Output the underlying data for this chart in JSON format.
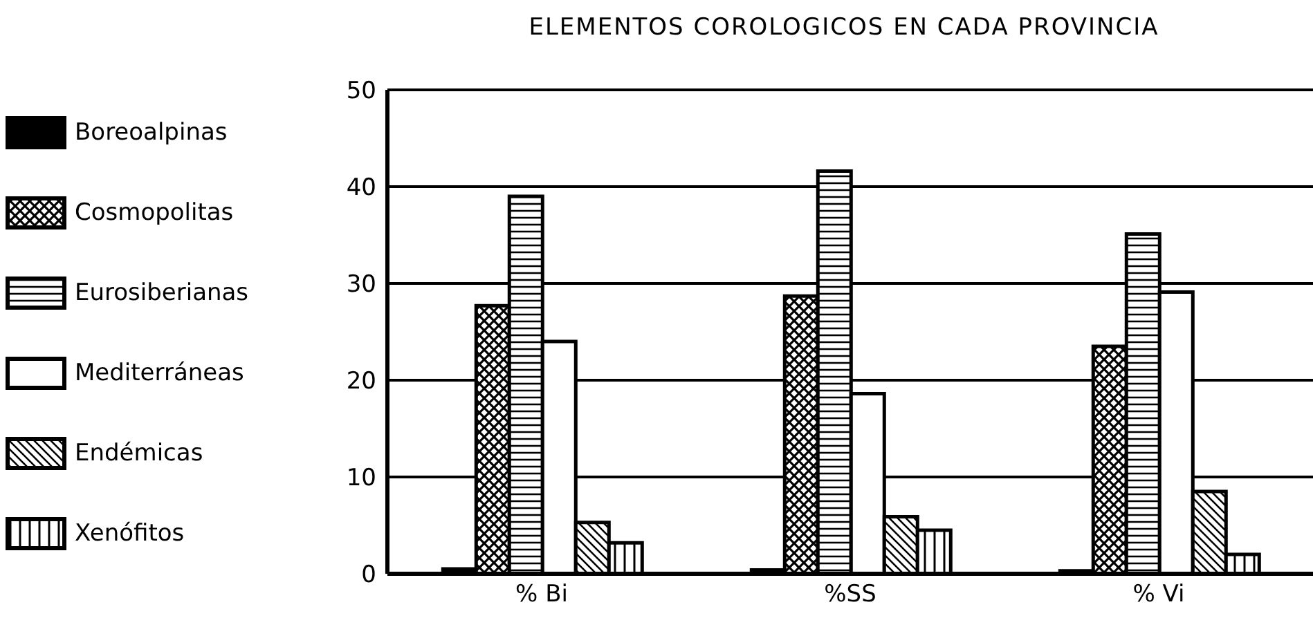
{
  "chart_data": {
    "type": "bar",
    "title": "ELEMENTOS  COROLOGICOS EN CADA PROVINCIA",
    "categories": [
      "% Bi",
      "%SS",
      "% Vi"
    ],
    "series": [
      {
        "name": "Boreoalpinas",
        "color": "#000000",
        "values": [
          0.5,
          0.4,
          0.3
        ]
      },
      {
        "name": "Cosmopolitas",
        "color": "#000000",
        "values": [
          27.7,
          28.7,
          23.5
        ]
      },
      {
        "name": "Eurosiberianas",
        "color": "#000000",
        "values": [
          39.0,
          41.6,
          35.1
        ]
      },
      {
        "name": "Mediterráneas",
        "color": "#ffffff",
        "values": [
          24.0,
          18.6,
          29.1
        ]
      },
      {
        "name": "Endémicas",
        "color": "#000000",
        "values": [
          5.3,
          5.9,
          8.5
        ]
      },
      {
        "name": "Xenófitos",
        "color": "#000000",
        "values": [
          3.2,
          4.5,
          2.0
        ]
      }
    ],
    "ylim": [
      0,
      50
    ],
    "yticks": [
      0,
      10,
      20,
      30,
      40,
      50
    ],
    "grid": "y",
    "legend": "left"
  }
}
